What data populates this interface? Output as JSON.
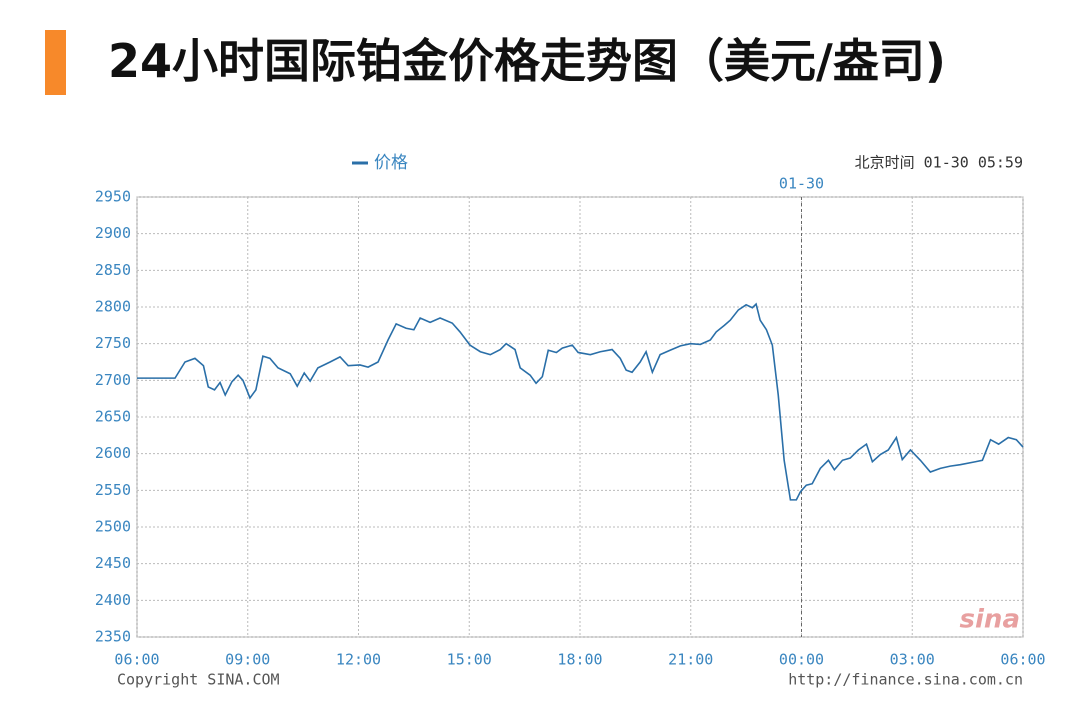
{
  "chart_data": {
    "type": "line",
    "title": "24小时国际铂金价格走势图（美元/盎司)",
    "time_label": "北京时间 01-30 05:59",
    "date_marker": {
      "value": 18,
      "label": "01-30"
    },
    "copyright": "Copyright  SINA.COM",
    "source_url": "http://finance.sina.com.cn",
    "watermark": "sina",
    "grid": true,
    "xlim": [
      0,
      24
    ],
    "ylim": [
      2350,
      2950
    ],
    "xticks": [
      {
        "value": 0,
        "label": "06:00"
      },
      {
        "value": 3,
        "label": "09:00"
      },
      {
        "value": 6,
        "label": "12:00"
      },
      {
        "value": 9,
        "label": "15:00"
      },
      {
        "value": 12,
        "label": "18:00"
      },
      {
        "value": 15,
        "label": "21:00"
      },
      {
        "value": 18,
        "label": "00:00"
      },
      {
        "value": 21,
        "label": "03:00"
      },
      {
        "value": 24,
        "label": "06:00"
      }
    ],
    "yticks": [
      2350,
      2400,
      2450,
      2500,
      2550,
      2600,
      2650,
      2700,
      2750,
      2800,
      2850,
      2900,
      2950
    ],
    "x": [
      0,
      1.03,
      1.3,
      1.57,
      1.8,
      1.93,
      2.1,
      2.25,
      2.39,
      2.57,
      2.74,
      2.87,
      3.06,
      3.22,
      3.41,
      3.6,
      3.82,
      4.15,
      4.34,
      4.53,
      4.69,
      4.9,
      5.23,
      5.5,
      5.72,
      6.04,
      6.26,
      6.53,
      6.8,
      7.02,
      7.29,
      7.5,
      7.67,
      7.94,
      8.21,
      8.54,
      8.75,
      9.02,
      9.3,
      9.57,
      9.84,
      10,
      10.24,
      10.38,
      10.65,
      10.81,
      10.98,
      11.14,
      11.36,
      11.52,
      11.79,
      11.95,
      12.28,
      12.55,
      12.87,
      13.09,
      13.25,
      13.41,
      13.63,
      13.79,
      13.96,
      14.17,
      14.44,
      14.72,
      14.99,
      15.26,
      15.53,
      15.69,
      15.91,
      16.07,
      16.29,
      16.5,
      16.67,
      16.77,
      16.88,
      17.05,
      17.21,
      17.37,
      17.53,
      17.7,
      17.86,
      17.97,
      18.13,
      18.29,
      18.51,
      18.73,
      18.89,
      19.11,
      19.32,
      19.54,
      19.76,
      19.92,
      20.14,
      20.35,
      20.57,
      20.73,
      20.95,
      21.22,
      21.49,
      21.76,
      22.03,
      22.3,
      22.71,
      22.9,
      23.12,
      23.34,
      23.6,
      23.82,
      24
    ],
    "series": [
      {
        "name": "价格",
        "color": "#2a6fa8",
        "values": [
          2703,
          2703,
          2725,
          2730,
          2720,
          2691,
          2687,
          2697,
          2680,
          2698,
          2707,
          2700,
          2676,
          2687,
          2733,
          2730,
          2717,
          2709,
          2692,
          2710,
          2699,
          2717,
          2725,
          2732,
          2720,
          2721,
          2718,
          2725,
          2755,
          2777,
          2771,
          2769,
          2785,
          2779,
          2785,
          2778,
          2766,
          2748,
          2739,
          2735,
          2742,
          2750,
          2742,
          2717,
          2707,
          2696,
          2705,
          2741,
          2738,
          2744,
          2748,
          2738,
          2735,
          2739,
          2742,
          2730,
          2714,
          2711,
          2725,
          2739,
          2711,
          2735,
          2741,
          2747,
          2750,
          2749,
          2755,
          2766,
          2775,
          2782,
          2796,
          2803,
          2799,
          2804,
          2782,
          2769,
          2748,
          2680,
          2591,
          2537,
          2537,
          2548,
          2557,
          2559,
          2580,
          2591,
          2578,
          2591,
          2594,
          2605,
          2613,
          2589,
          2599,
          2605,
          2622,
          2592,
          2605,
          2591,
          2575,
          2580,
          2583,
          2585,
          2589,
          2591,
          2619,
          2613,
          2622,
          2619,
          2609
        ]
      }
    ]
  }
}
